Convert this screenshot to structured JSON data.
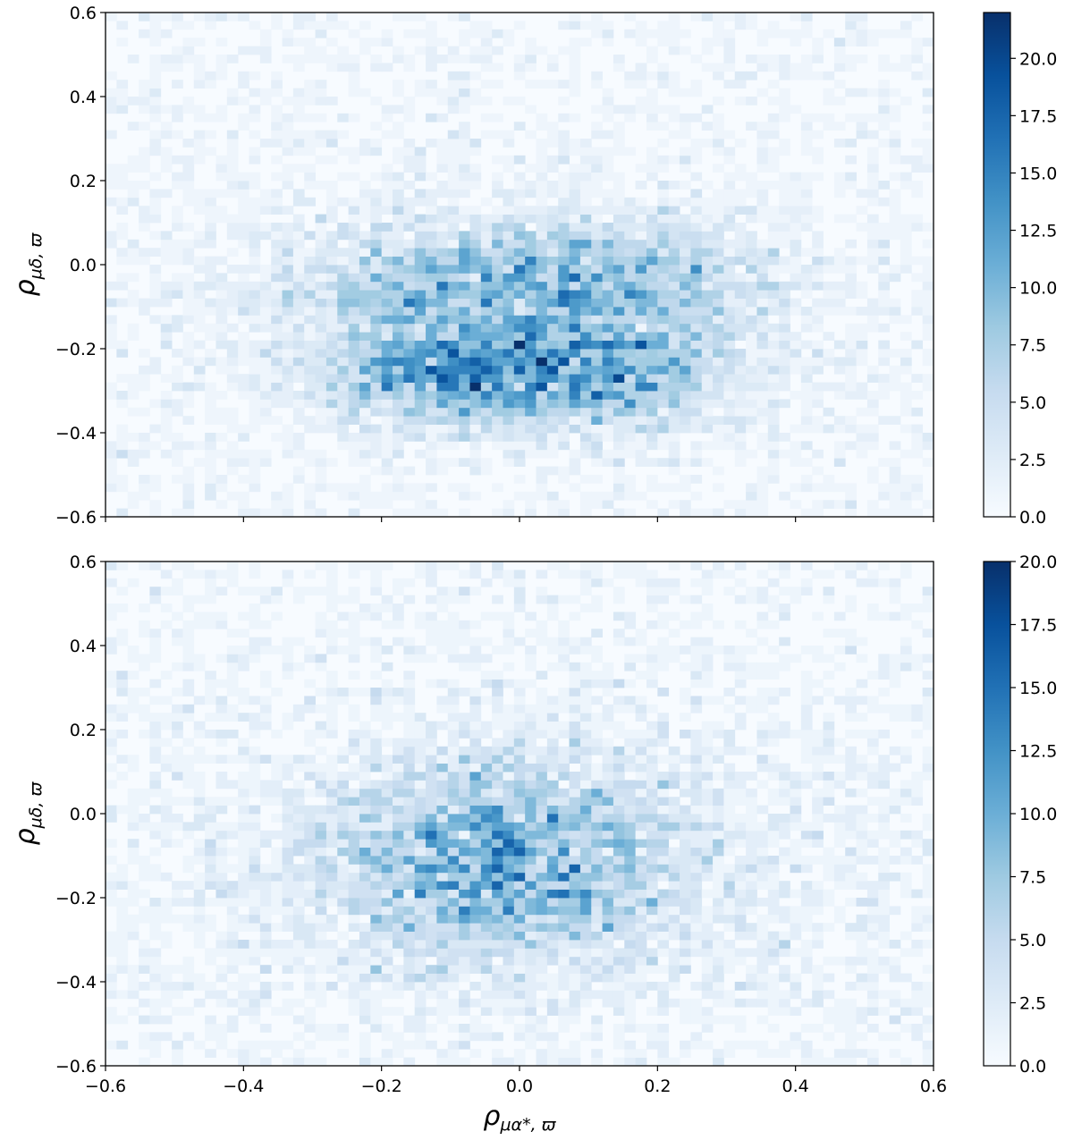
{
  "colormap": {
    "name": "Blues",
    "stops": [
      "#f7fbff",
      "#deebf7",
      "#c6dbef",
      "#9ecae1",
      "#6baed6",
      "#4292c6",
      "#2171b5",
      "#08519c",
      "#08306b"
    ]
  },
  "y_axis_label": {
    "symbol": "ρ",
    "subscript": "μδ, ϖ"
  },
  "x_axis_label": {
    "symbol": "ρ",
    "subscript": "μα*, ϖ"
  },
  "chart_data": [
    {
      "type": "heatmap",
      "panel": "top",
      "xlim": [
        -0.6,
        0.6
      ],
      "ylim": [
        -0.6,
        0.6
      ],
      "bins": [
        75,
        60
      ],
      "x_ticks": [
        -0.6,
        -0.4,
        -0.2,
        0.0,
        0.2,
        0.4,
        0.6
      ],
      "x_tick_labels": [],
      "y_ticks": [
        -0.6,
        -0.4,
        -0.2,
        0.0,
        0.2,
        0.4,
        0.6
      ],
      "y_tick_labels": [
        "−0.6",
        "−0.4",
        "−0.2",
        "0.0",
        "0.2",
        "0.4",
        "0.6"
      ],
      "colorbar": {
        "range": [
          0,
          22
        ],
        "ticks": [
          0,
          2.5,
          5,
          7.5,
          10,
          12.5,
          15,
          17.5,
          20
        ],
        "tick_labels": [
          "0.0",
          "2.5",
          "5.0",
          "7.5",
          "10.0",
          "12.5",
          "15.0",
          "17.5",
          "20.0"
        ]
      },
      "density_components": [
        {
          "x": -0.12,
          "y": -0.26,
          "sx": 0.11,
          "sy": 0.07,
          "peak": 9
        },
        {
          "x": 0.1,
          "y": -0.26,
          "sx": 0.12,
          "sy": 0.07,
          "peak": 9
        },
        {
          "x": -0.12,
          "y": -0.06,
          "sx": 0.14,
          "sy": 0.08,
          "peak": 6
        },
        {
          "x": 0.15,
          "y": -0.04,
          "sx": 0.13,
          "sy": 0.09,
          "peak": 6
        },
        {
          "x": 0.0,
          "y": -0.12,
          "sx": 0.25,
          "sy": 0.18,
          "peak": 2.5
        }
      ],
      "noise_floor": 0.6,
      "max_count": 22
    },
    {
      "type": "heatmap",
      "panel": "bottom",
      "xlim": [
        -0.6,
        0.6
      ],
      "ylim": [
        -0.6,
        0.6
      ],
      "bins": [
        75,
        60
      ],
      "x_ticks": [
        -0.6,
        -0.4,
        -0.2,
        0.0,
        0.2,
        0.4,
        0.6
      ],
      "x_tick_labels": [
        "−0.6",
        "−0.4",
        "−0.2",
        "0.0",
        "0.2",
        "0.4",
        "0.6"
      ],
      "y_ticks": [
        -0.6,
        -0.4,
        -0.2,
        0.0,
        0.2,
        0.4,
        0.6
      ],
      "y_tick_labels": [
        "−0.6",
        "−0.4",
        "−0.2",
        "0.0",
        "0.2",
        "0.4",
        "0.6"
      ],
      "colorbar": {
        "range": [
          0,
          20
        ],
        "ticks": [
          0,
          2.5,
          5,
          7.5,
          10,
          12.5,
          15,
          17.5,
          20
        ],
        "tick_labels": [
          "0.0",
          "2.5",
          "5.0",
          "7.5",
          "10.0",
          "12.5",
          "15.0",
          "17.5",
          "20.0"
        ]
      },
      "density_components": [
        {
          "x": -0.02,
          "y": -0.12,
          "sx": 0.14,
          "sy": 0.13,
          "peak": 8
        },
        {
          "x": 0.0,
          "y": -0.1,
          "sx": 0.26,
          "sy": 0.2,
          "peak": 2.5
        }
      ],
      "noise_floor": 0.6,
      "max_count": 20
    }
  ]
}
